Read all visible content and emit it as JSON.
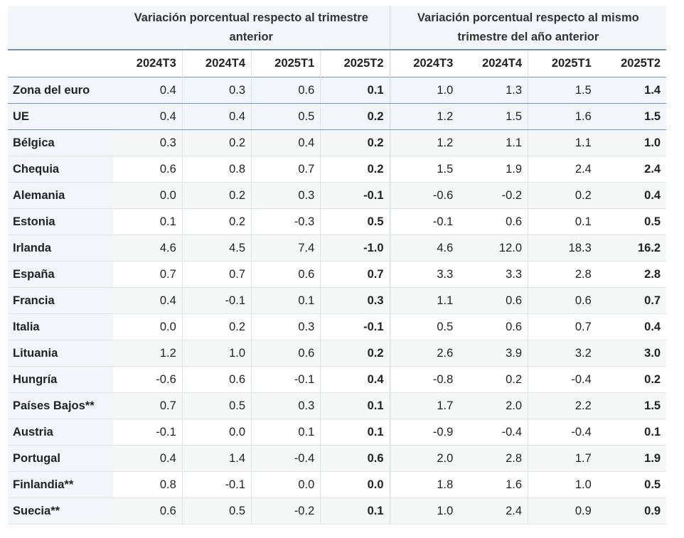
{
  "header": {
    "group1": "Variación porcentual respecto al trimestre anterior",
    "group2": "Variación porcentual respecto al mismo trimestre del año anterior",
    "quarters": [
      "2024T3",
      "2024T4",
      "2025T1",
      "2025T2",
      "2024T3",
      "2024T4",
      "2025T1",
      "2025T2"
    ]
  },
  "rows": [
    {
      "name": "Zona del euro",
      "v": [
        "0.4",
        "0.3",
        "0.6",
        "0.1",
        "1.0",
        "1.3",
        "1.5",
        "1.4"
      ]
    },
    {
      "name": "UE",
      "v": [
        "0.4",
        "0.4",
        "0.5",
        "0.2",
        "1.2",
        "1.5",
        "1.6",
        "1.5"
      ]
    },
    {
      "name": "Bélgica",
      "v": [
        "0.3",
        "0.2",
        "0.4",
        "0.2",
        "1.2",
        "1.1",
        "1.1",
        "1.0"
      ]
    },
    {
      "name": "Chequia",
      "v": [
        "0.6",
        "0.8",
        "0.7",
        "0.2",
        "1.5",
        "1.9",
        "2.4",
        "2.4"
      ]
    },
    {
      "name": "Alemania",
      "v": [
        "0.0",
        "0.2",
        "0.3",
        "-0.1",
        "-0.6",
        "-0.2",
        "0.2",
        "0.4"
      ]
    },
    {
      "name": "Estonia",
      "v": [
        "0.1",
        "0.2",
        "-0.3",
        "0.5",
        "-0.1",
        "0.6",
        "0.1",
        "0.5"
      ]
    },
    {
      "name": "Irlanda",
      "v": [
        "4.6",
        "4.5",
        "7.4",
        "-1.0",
        "4.6",
        "12.0",
        "18.3",
        "16.2"
      ]
    },
    {
      "name": "España",
      "v": [
        "0.7",
        "0.7",
        "0.6",
        "0.7",
        "3.3",
        "3.3",
        "2.8",
        "2.8"
      ]
    },
    {
      "name": "Francia",
      "v": [
        "0.4",
        "-0.1",
        "0.1",
        "0.3",
        "1.1",
        "0.6",
        "0.6",
        "0.7"
      ]
    },
    {
      "name": "Italia",
      "v": [
        "0.0",
        "0.2",
        "0.3",
        "-0.1",
        "0.5",
        "0.6",
        "0.7",
        "0.4"
      ]
    },
    {
      "name": "Lituania",
      "v": [
        "1.2",
        "1.0",
        "0.6",
        "0.2",
        "2.6",
        "3.9",
        "3.2",
        "3.0"
      ]
    },
    {
      "name": "Hungría",
      "v": [
        "-0.6",
        "0.6",
        "-0.1",
        "0.4",
        "-0.8",
        "0.2",
        "-0.4",
        "0.2"
      ]
    },
    {
      "name": "Países Bajos**",
      "v": [
        "0.7",
        "0.5",
        "0.3",
        "0.1",
        "1.7",
        "2.0",
        "2.2",
        "1.5"
      ]
    },
    {
      "name": "Austria",
      "v": [
        "-0.1",
        "0.0",
        "0.1",
        "0.1",
        "-0.9",
        "-0.4",
        "-0.4",
        "0.1"
      ]
    },
    {
      "name": "Portugal",
      "v": [
        "0.4",
        "1.4",
        "-0.4",
        "0.6",
        "2.0",
        "2.8",
        "1.7",
        "1.9"
      ]
    },
    {
      "name": "Finlandia**",
      "v": [
        "0.8",
        "-0.1",
        "0.0",
        "0.0",
        "1.8",
        "1.6",
        "1.0",
        "0.5"
      ]
    },
    {
      "name": "Suecia**",
      "v": [
        "0.6",
        "0.5",
        "-0.2",
        "0.1",
        "1.0",
        "2.4",
        "0.9",
        "0.9"
      ]
    }
  ]
}
